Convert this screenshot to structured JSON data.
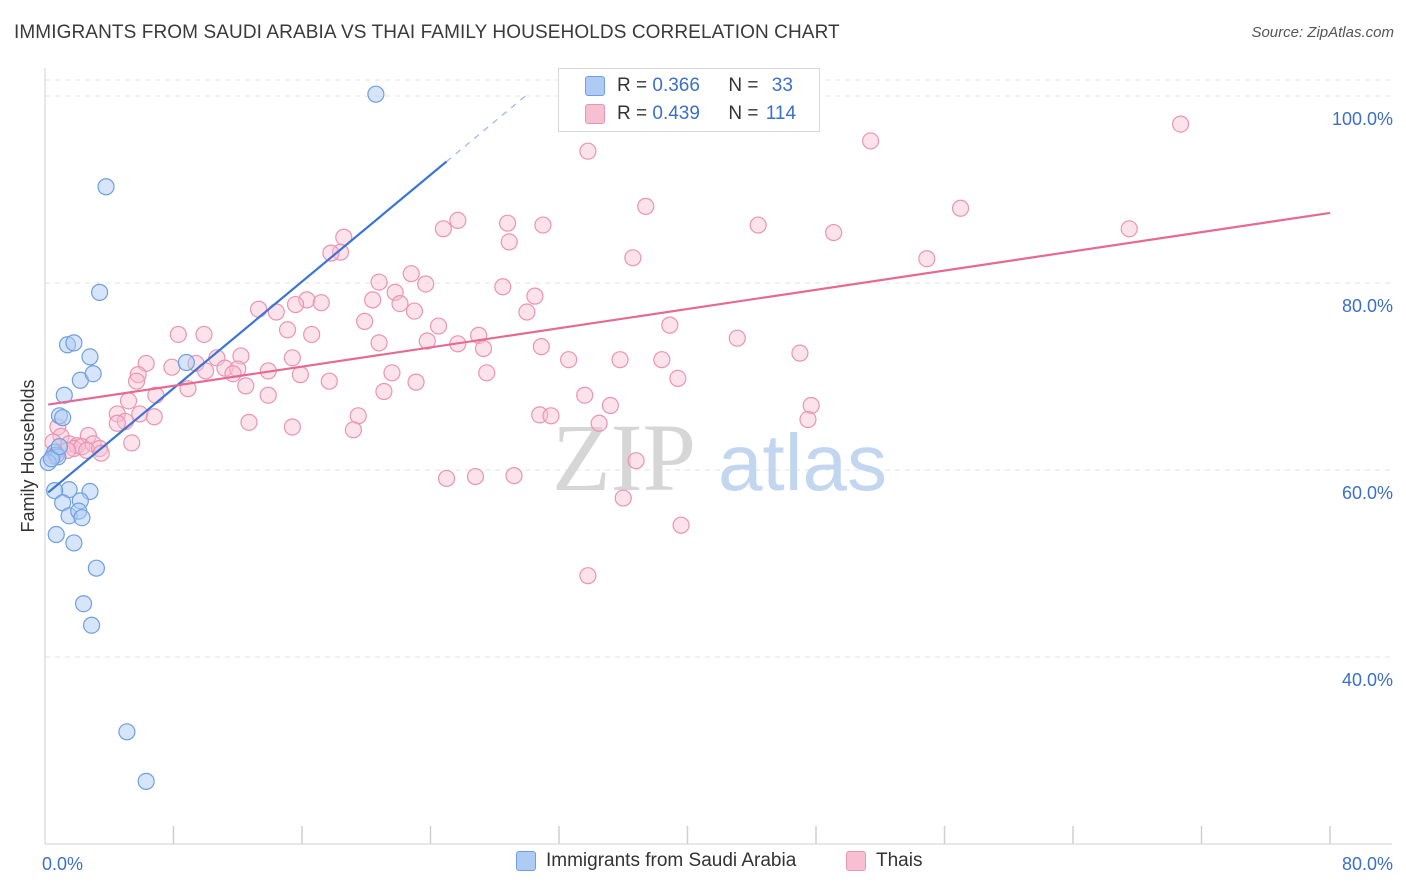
{
  "title": "IMMIGRANTS FROM SAUDI ARABIA VS THAI FAMILY HOUSEHOLDS CORRELATION CHART",
  "source": "Source: ZipAtlas.com",
  "watermark": {
    "zip": "ZIP",
    "atlas": "atlas"
  },
  "legend_top": {
    "rows": [
      {
        "r_label": "R = ",
        "r_value": "0.366",
        "n_label": "N = ",
        "n_value": "33"
      },
      {
        "r_label": "R = ",
        "r_value": "0.439",
        "n_label": "N = ",
        "n_value": "114"
      }
    ]
  },
  "legend_bottom": [
    {
      "label": "Immigrants from Saudi Arabia"
    },
    {
      "label": "Thais"
    }
  ],
  "colors": {
    "blue_fill": "#aecbf3",
    "blue_stroke": "#6f9fe0",
    "blue_line": "#3b75d4",
    "pink_fill": "#f7bfd2",
    "pink_stroke": "#eb94b2",
    "pink_line": "#e46a95",
    "axis_text": "#3b6fc8",
    "grid": "#e3e3e3"
  },
  "chart_data": {
    "type": "scatter",
    "title": "IMMIGRANTS FROM SAUDI ARABIA VS THAI FAMILY HOUSEHOLDS CORRELATION CHART",
    "xlabel": "",
    "ylabel": "Family Households",
    "xlim": [
      0,
      80
    ],
    "ylim": [
      20,
      103
    ],
    "x_tick_labels": [
      {
        "value": 0,
        "label": "0.0%"
      },
      {
        "value": 80,
        "label": "80.0%"
      }
    ],
    "x_minor_ticks": [
      8,
      16,
      24,
      32,
      40,
      48,
      56,
      64,
      72
    ],
    "y_ticks": [
      {
        "value": 40,
        "label": "40.0%"
      },
      {
        "value": 60,
        "label": "60.0%"
      },
      {
        "value": 80,
        "label": "80.0%"
      },
      {
        "value": 100,
        "label": "100.0%"
      }
    ],
    "series": [
      {
        "name": "Immigrants from Saudi Arabia",
        "color": "blue",
        "R": 0.366,
        "N": 33,
        "trend": {
          "x0": 0.2,
          "y0": 57.6,
          "x1": 25.0,
          "y1": 93.0,
          "dash_to_x": 30.0
        },
        "points": [
          [
            20.6,
            100.2
          ],
          [
            3.8,
            90.3
          ],
          [
            3.4,
            79.0
          ],
          [
            1.4,
            73.4
          ],
          [
            1.8,
            73.6
          ],
          [
            2.8,
            72.1
          ],
          [
            2.2,
            69.6
          ],
          [
            3.0,
            70.3
          ],
          [
            8.8,
            71.5
          ],
          [
            1.2,
            68.0
          ],
          [
            0.9,
            65.8
          ],
          [
            1.1,
            65.6
          ],
          [
            0.6,
            61.9
          ],
          [
            0.7,
            61.6
          ],
          [
            0.8,
            61.4
          ],
          [
            0.2,
            60.8
          ],
          [
            0.4,
            61.2
          ],
          [
            1.5,
            57.9
          ],
          [
            0.6,
            57.8
          ],
          [
            2.8,
            57.7
          ],
          [
            1.1,
            56.5
          ],
          [
            2.2,
            56.7
          ],
          [
            1.5,
            55.1
          ],
          [
            2.1,
            55.6
          ],
          [
            2.3,
            54.9
          ],
          [
            0.7,
            53.1
          ],
          [
            1.8,
            52.2
          ],
          [
            3.2,
            49.5
          ],
          [
            2.4,
            45.7
          ],
          [
            2.9,
            43.4
          ],
          [
            5.1,
            32.0
          ],
          [
            6.3,
            26.7
          ],
          [
            0.9,
            62.5
          ]
        ]
      },
      {
        "name": "Thais",
        "color": "pink",
        "R": 0.439,
        "N": 114,
        "trend": {
          "x0": 0.2,
          "y0": 67.0,
          "x1": 80.0,
          "y1": 87.5
        },
        "points": [
          [
            70.7,
            97.0
          ],
          [
            51.4,
            95.2
          ],
          [
            33.8,
            94.1
          ],
          [
            37.4,
            88.2
          ],
          [
            57.0,
            88.0
          ],
          [
            25.7,
            86.7
          ],
          [
            24.8,
            85.8
          ],
          [
            28.8,
            86.4
          ],
          [
            31.0,
            86.2
          ],
          [
            44.4,
            86.2
          ],
          [
            49.1,
            85.4
          ],
          [
            67.5,
            85.8
          ],
          [
            18.6,
            84.9
          ],
          [
            28.9,
            84.4
          ],
          [
            18.4,
            83.3
          ],
          [
            17.8,
            83.2
          ],
          [
            36.6,
            82.7
          ],
          [
            54.9,
            82.6
          ],
          [
            22.8,
            81.0
          ],
          [
            20.8,
            80.1
          ],
          [
            23.7,
            79.9
          ],
          [
            28.5,
            79.6
          ],
          [
            21.8,
            79.0
          ],
          [
            30.5,
            78.6
          ],
          [
            20.4,
            78.2
          ],
          [
            16.3,
            78.2
          ],
          [
            17.2,
            77.9
          ],
          [
            15.6,
            77.7
          ],
          [
            22.1,
            77.8
          ],
          [
            13.3,
            77.2
          ],
          [
            14.4,
            76.9
          ],
          [
            23.0,
            77.0
          ],
          [
            30.0,
            76.9
          ],
          [
            19.9,
            75.9
          ],
          [
            24.5,
            75.4
          ],
          [
            38.9,
            75.5
          ],
          [
            15.1,
            75.0
          ],
          [
            16.6,
            74.5
          ],
          [
            8.3,
            74.5
          ],
          [
            9.9,
            74.5
          ],
          [
            27.0,
            74.4
          ],
          [
            43.1,
            74.1
          ],
          [
            23.8,
            73.8
          ],
          [
            25.7,
            73.5
          ],
          [
            20.8,
            73.6
          ],
          [
            30.9,
            73.2
          ],
          [
            27.3,
            73.0
          ],
          [
            47.0,
            72.5
          ],
          [
            12.2,
            72.2
          ],
          [
            10.7,
            72.0
          ],
          [
            15.4,
            72.0
          ],
          [
            32.6,
            71.8
          ],
          [
            35.8,
            71.8
          ],
          [
            38.4,
            71.8
          ],
          [
            9.4,
            71.4
          ],
          [
            6.3,
            71.4
          ],
          [
            7.9,
            71.0
          ],
          [
            11.2,
            70.9
          ],
          [
            12.0,
            70.8
          ],
          [
            13.9,
            70.6
          ],
          [
            10.0,
            70.6
          ],
          [
            11.7,
            70.3
          ],
          [
            5.8,
            70.2
          ],
          [
            15.9,
            70.2
          ],
          [
            21.6,
            70.4
          ],
          [
            27.5,
            70.4
          ],
          [
            39.4,
            69.8
          ],
          [
            17.7,
            69.5
          ],
          [
            23.1,
            69.4
          ],
          [
            5.7,
            69.5
          ],
          [
            12.5,
            69.0
          ],
          [
            8.9,
            68.7
          ],
          [
            21.1,
            68.4
          ],
          [
            6.9,
            68.0
          ],
          [
            13.9,
            68.0
          ],
          [
            33.6,
            68.0
          ],
          [
            5.2,
            67.4
          ],
          [
            35.2,
            66.9
          ],
          [
            47.7,
            66.9
          ],
          [
            5.9,
            66.0
          ],
          [
            4.5,
            66.0
          ],
          [
            19.5,
            65.8
          ],
          [
            30.8,
            65.9
          ],
          [
            31.5,
            65.8
          ],
          [
            6.8,
            65.7
          ],
          [
            47.5,
            65.4
          ],
          [
            5.0,
            65.2
          ],
          [
            4.5,
            65.0
          ],
          [
            12.7,
            65.1
          ],
          [
            34.5,
            65.0
          ],
          [
            15.4,
            64.6
          ],
          [
            19.2,
            64.3
          ],
          [
            0.8,
            64.6
          ],
          [
            2.7,
            63.7
          ],
          [
            1.0,
            63.6
          ],
          [
            0.5,
            63.0
          ],
          [
            1.5,
            62.8
          ],
          [
            2.0,
            62.6
          ],
          [
            1.8,
            62.3
          ],
          [
            2.3,
            62.5
          ],
          [
            3.0,
            62.8
          ],
          [
            1.4,
            62.1
          ],
          [
            2.6,
            62.1
          ],
          [
            3.4,
            62.3
          ],
          [
            3.5,
            61.8
          ],
          [
            5.4,
            62.9
          ],
          [
            36.8,
            61.0
          ],
          [
            29.2,
            59.4
          ],
          [
            25.0,
            59.1
          ],
          [
            26.8,
            59.3
          ],
          [
            36.0,
            57.0
          ],
          [
            39.6,
            54.1
          ],
          [
            33.8,
            48.7
          ],
          [
            0.5,
            61.5
          ]
        ]
      }
    ]
  }
}
